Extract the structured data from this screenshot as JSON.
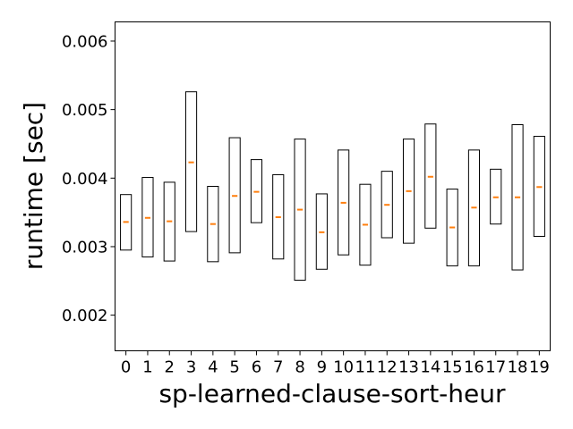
{
  "chart_data": {
    "type": "box",
    "title": "",
    "xlabel": "sp-learned-clause-sort-heur",
    "ylabel": "runtime [sec]",
    "ylim": [
      0.00148,
      0.00628
    ],
    "yticks": [
      "0.002",
      "0.003",
      "0.004",
      "0.005",
      "0.006"
    ],
    "ytick_values": [
      0.002,
      0.003,
      0.004,
      0.005,
      0.006
    ],
    "categories": [
      "0",
      "1",
      "2",
      "3",
      "4",
      "5",
      "6",
      "7",
      "8",
      "9",
      "10",
      "11",
      "12",
      "13",
      "14",
      "15",
      "16",
      "17",
      "18",
      "19"
    ],
    "grid": false,
    "box_color": "#000000",
    "median_color": "#ff7f0e",
    "boxes": [
      {
        "q1": 0.00295,
        "median": 0.00336,
        "q3": 0.00376
      },
      {
        "q1": 0.00285,
        "median": 0.00342,
        "q3": 0.00401
      },
      {
        "q1": 0.00279,
        "median": 0.00337,
        "q3": 0.00394
      },
      {
        "q1": 0.00322,
        "median": 0.00423,
        "q3": 0.00526
      },
      {
        "q1": 0.00278,
        "median": 0.00333,
        "q3": 0.00388
      },
      {
        "q1": 0.00291,
        "median": 0.00374,
        "q3": 0.00459
      },
      {
        "q1": 0.00335,
        "median": 0.0038,
        "q3": 0.00427
      },
      {
        "q1": 0.00282,
        "median": 0.00343,
        "q3": 0.00405
      },
      {
        "q1": 0.00251,
        "median": 0.00354,
        "q3": 0.00457
      },
      {
        "q1": 0.00267,
        "median": 0.00321,
        "q3": 0.00377
      },
      {
        "q1": 0.00288,
        "median": 0.00364,
        "q3": 0.00441
      },
      {
        "q1": 0.00273,
        "median": 0.00332,
        "q3": 0.00391
      },
      {
        "q1": 0.00313,
        "median": 0.00361,
        "q3": 0.0041
      },
      {
        "q1": 0.00305,
        "median": 0.00381,
        "q3": 0.00457
      },
      {
        "q1": 0.00327,
        "median": 0.00402,
        "q3": 0.00479
      },
      {
        "q1": 0.00272,
        "median": 0.00328,
        "q3": 0.00384
      },
      {
        "q1": 0.00272,
        "median": 0.00357,
        "q3": 0.00441
      },
      {
        "q1": 0.00333,
        "median": 0.00372,
        "q3": 0.00413
      },
      {
        "q1": 0.00266,
        "median": 0.00372,
        "q3": 0.00478
      },
      {
        "q1": 0.00315,
        "median": 0.00387,
        "q3": 0.00461
      }
    ]
  }
}
